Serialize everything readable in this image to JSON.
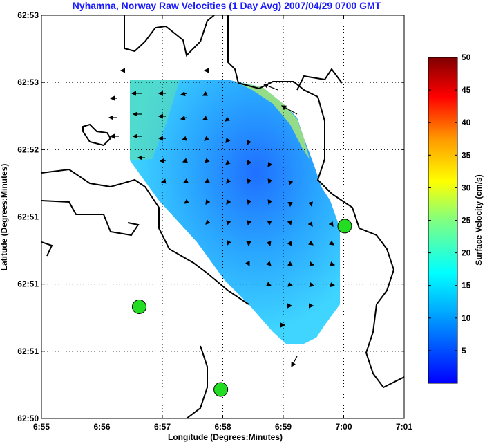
{
  "chart_data": {
    "type": "heatmap",
    "title": "Nyhamna, Norway Raw Velocities (1 Day Avg) 2007/04/29 0700 GMT",
    "xlabel": "Longitude (Degrees:Minutes)",
    "ylabel": "Latitude (Degrees:Minutes)",
    "x_ticks": [
      "6:55",
      "6:56",
      "6:57",
      "6:58",
      "6:59",
      "7:00",
      "7:01"
    ],
    "y_ticks": [
      "62:53",
      "62:53",
      "62:52",
      "62:51",
      "62:51",
      "62:51",
      "62:50"
    ],
    "grid": true,
    "colorbar": {
      "label": "Surface Velocity (cm/s)",
      "ticks": [
        5,
        10,
        15,
        20,
        25,
        30,
        35,
        40,
        45,
        50
      ],
      "range": [
        0,
        50
      ],
      "colormap": "jet"
    },
    "stations": [
      {
        "x": 6.617,
        "y": 0.277
      },
      {
        "x": 7.967,
        "y": 0.072
      },
      {
        "x": 10.017,
        "y": 0.477
      }
    ],
    "colors": {
      "title": "#1a1aff",
      "station": "#22dd22",
      "coast": "#000000"
    }
  }
}
